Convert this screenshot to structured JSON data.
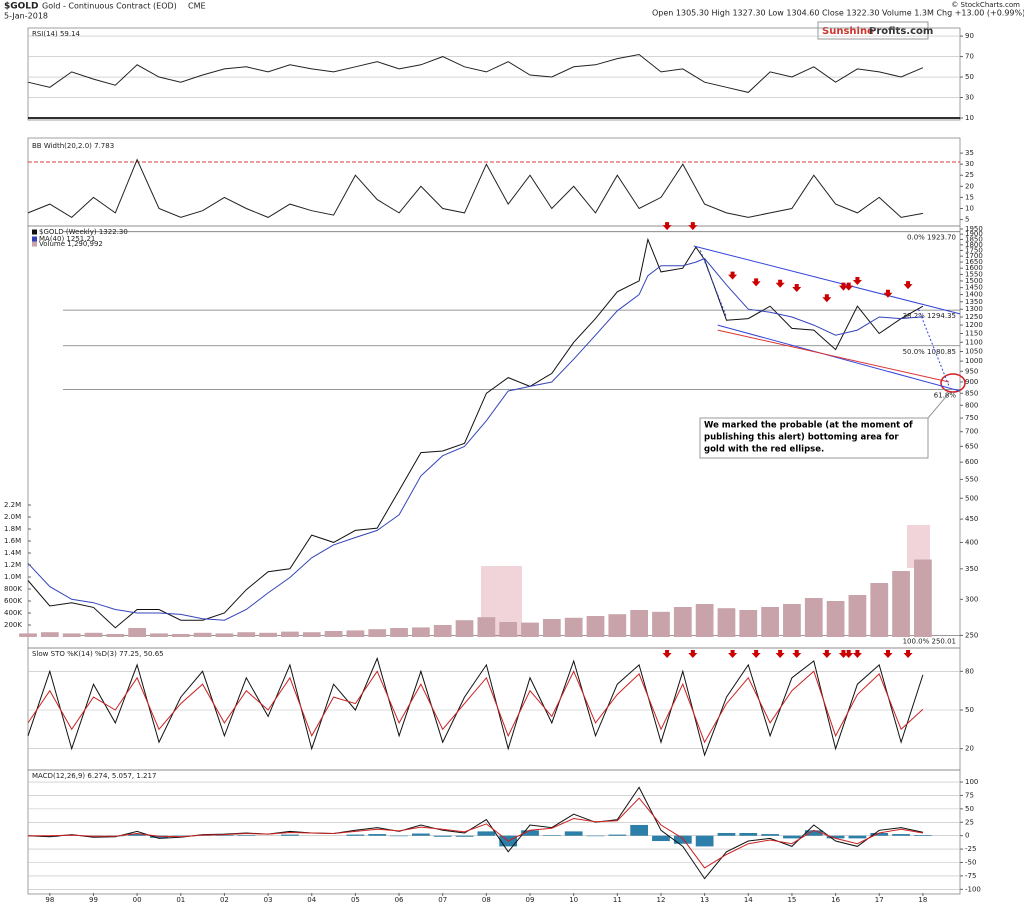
{
  "header": {
    "symbol": "$GOLD",
    "name": "Gold - Continuous Contract (EOD)",
    "exchange": "CME",
    "date": "5-Jan-2018",
    "quote": "Open 1305.30 High 1327.30 Low 1304.60 Close 1322.30 Volume 1.3M Chg +13.00 (+0.99%)",
    "source": "© StockCharts.com"
  },
  "logo": {
    "left": "Sunshine",
    "right": "Profits.com"
  },
  "chart_data": [
    {
      "type": "line",
      "title": "RSI(14) 59.14",
      "xlim": [
        1997.5,
        2018.85
      ],
      "ylim": [
        10,
        94
      ],
      "yticks": [
        10,
        30,
        50,
        70,
        90
      ],
      "grid": true,
      "x": [
        1997.5,
        1998,
        1998.5,
        1999,
        1999.5,
        2000,
        2000.5,
        2001,
        2001.5,
        2002,
        2002.5,
        2003,
        2003.5,
        2004,
        2004.5,
        2005,
        2005.5,
        2006,
        2006.5,
        2007,
        2007.5,
        2008,
        2008.5,
        2009,
        2009.5,
        2010,
        2010.5,
        2011,
        2011.5,
        2012,
        2012.5,
        2013,
        2013.5,
        2014,
        2014.5,
        2015,
        2015.5,
        2016,
        2016.5,
        2017,
        2017.5,
        2018
      ],
      "series": [
        {
          "color": "#222222",
          "values": [
            45,
            40,
            55,
            48,
            42,
            62,
            50,
            45,
            52,
            58,
            60,
            55,
            62,
            58,
            55,
            60,
            65,
            58,
            62,
            70,
            60,
            55,
            65,
            52,
            50,
            60,
            62,
            68,
            72,
            55,
            58,
            45,
            40,
            35,
            55,
            50,
            60,
            45,
            58,
            55,
            50,
            59.14
          ]
        }
      ]
    },
    {
      "type": "line",
      "title": "BB Width(20,2.0) 7.783",
      "xlim": [
        1997.5,
        2018.85
      ],
      "ylim": [
        3,
        40
      ],
      "yticks": [
        5,
        10,
        15,
        20,
        25,
        30,
        35
      ],
      "threshold": 31,
      "x": [
        1997.5,
        1998,
        1998.5,
        1999,
        1999.5,
        2000,
        2000.5,
        2001,
        2001.5,
        2002,
        2002.5,
        2003,
        2003.5,
        2004,
        2004.5,
        2005,
        2005.5,
        2006,
        2006.5,
        2007,
        2007.5,
        2008,
        2008.5,
        2009,
        2009.5,
        2010,
        2010.5,
        2011,
        2011.5,
        2012,
        2012.5,
        2013,
        2013.5,
        2014,
        2014.5,
        2015,
        2015.5,
        2016,
        2016.5,
        2017,
        2017.5,
        2018
      ],
      "series": [
        {
          "color": "#222222",
          "values": [
            8,
            12,
            6,
            15,
            8,
            32,
            10,
            6,
            9,
            15,
            10,
            6,
            12,
            9,
            7,
            25,
            14,
            8,
            20,
            10,
            8,
            30,
            12,
            25,
            10,
            20,
            8,
            25,
            10,
            15,
            30,
            12,
            8,
            6,
            8,
            10,
            25,
            12,
            8,
            15,
            6,
            7.783
          ]
        }
      ]
    },
    {
      "type": "line",
      "log_scale": true,
      "xlim": [
        1997.5,
        2018.85
      ],
      "ylim": [
        248,
        1960
      ],
      "yticks": [
        250,
        300,
        350,
        400,
        450,
        500,
        550,
        600,
        650,
        700,
        750,
        800,
        850,
        900,
        950,
        1000,
        1050,
        1100,
        1150,
        1200,
        1250,
        1300,
        1350,
        1400,
        1450,
        1500,
        1550,
        1600,
        1650,
        1700,
        1750,
        1800,
        1850,
        1900,
        1950
      ],
      "x": [
        1997.5,
        1998,
        1998.5,
        1999,
        1999.5,
        2000,
        2000.5,
        2001,
        2001.5,
        2002,
        2002.5,
        2003,
        2003.5,
        2004,
        2004.5,
        2005,
        2005.5,
        2006,
        2006.5,
        2007,
        2007.5,
        2008,
        2008.5,
        2009,
        2009.5,
        2010,
        2010.5,
        2011,
        2011.5,
        2011.7,
        2012,
        2012.5,
        2012.8,
        2013,
        2013.5,
        2014,
        2014.5,
        2015,
        2015.5,
        2016,
        2016.5,
        2017,
        2017.5,
        2018
      ],
      "series": [
        {
          "name": "$GOLD (Weekly) 1322.30",
          "color": "#111111",
          "values": [
            330,
            290,
            295,
            288,
            260,
            285,
            285,
            270,
            270,
            280,
            315,
            345,
            350,
            415,
            400,
            425,
            430,
            520,
            630,
            635,
            660,
            850,
            920,
            880,
            940,
            1100,
            1240,
            1420,
            1500,
            1850,
            1570,
            1600,
            1780,
            1670,
            1230,
            1240,
            1320,
            1180,
            1170,
            1060,
            1320,
            1150,
            1240,
            1320
          ]
        },
        {
          "name": "MA(40) 1251.21",
          "color": "#3344bb",
          "values": [
            360,
            320,
            300,
            295,
            285,
            280,
            280,
            278,
            272,
            270,
            285,
            310,
            335,
            370,
            395,
            410,
            425,
            460,
            560,
            620,
            650,
            740,
            860,
            880,
            900,
            1010,
            1140,
            1290,
            1400,
            1540,
            1620,
            1620,
            1650,
            1680,
            1470,
            1300,
            1280,
            1250,
            1200,
            1140,
            1170,
            1250,
            1240,
            1251.21
          ]
        }
      ],
      "levels": [
        {
          "value": 1923.7,
          "label": "0.0% 1923.70"
        },
        {
          "value": 1294.35,
          "label": "38.2% 1294.35"
        },
        {
          "value": 1080.85,
          "label": "50.0% 1080.85"
        },
        {
          "value": 867,
          "label": "61.8%"
        },
        {
          "value": 250.01,
          "label": "100.0% 250.01"
        }
      ],
      "markers": {
        "x": [
          2012.14,
          2012.73,
          2013.64,
          2014.18,
          2014.73,
          2015.11,
          2015.8,
          2016.18,
          2016.3,
          2016.5,
          2017.2,
          2017.66
        ],
        "y": [
          1900,
          1900,
          1480,
          1430,
          1420,
          1390,
          1320,
          1400,
          1400,
          1440,
          1350,
          1410
        ],
        "color": "#cc0000"
      },
      "lines": [
        {
          "x": [
            2012.75,
            2018.85
          ],
          "y": [
            1790,
            1270
          ],
          "color": "#3344dd",
          "dotted": false
        },
        {
          "x": [
            2013.3,
            2018.85
          ],
          "y": [
            1200,
            860
          ],
          "color": "#3344dd",
          "dotted": false
        },
        {
          "x": [
            2013.3,
            2018.6
          ],
          "y": [
            1170,
            900
          ],
          "color": "#dd3333",
          "dotted": false
        },
        {
          "x": [
            2012.9,
            2013.5
          ],
          "y": [
            1750,
            1250
          ],
          "color": "#3344dd",
          "dotted": true
        },
        {
          "x": [
            2017.9,
            2018.6
          ],
          "y": [
            1300,
            880
          ],
          "color": "#3344dd",
          "dotted": true
        }
      ],
      "note": [
        "We marked the probable (at the moment of",
        "publishing this alert) bottoming area for",
        "gold with the red ellipse."
      ]
    },
    {
      "type": "bar",
      "xlim": [
        1997.5,
        2018.85
      ],
      "ylim": [
        0,
        2200000
      ],
      "axis_side": "left",
      "yticks": [
        {
          "value": 200000,
          "label": "200K"
        },
        {
          "value": 400000,
          "label": "400K"
        },
        {
          "value": 600000,
          "label": "600K"
        },
        {
          "value": 800000,
          "label": "800K"
        },
        {
          "value": 1000000,
          "label": "1.0M"
        },
        {
          "value": 1200000,
          "label": "1.2M"
        },
        {
          "value": 1400000,
          "label": "1.4M"
        },
        {
          "value": 1600000,
          "label": "1.6M"
        },
        {
          "value": 1800000,
          "label": "1.8M"
        },
        {
          "value": 2000000,
          "label": "2.0M"
        },
        {
          "value": 2200000,
          "label": "2.2M"
        }
      ],
      "x": [
        1997.5,
        1998,
        1998.5,
        1999,
        1999.5,
        2000,
        2000.5,
        2001,
        2001.5,
        2002,
        2002.5,
        2003,
        2003.5,
        2004,
        2004.5,
        2005,
        2005.5,
        2006,
        2006.5,
        2007,
        2007.5,
        2008,
        2008.5,
        2009,
        2009.5,
        2010,
        2010.5,
        2011,
        2011.5,
        2012,
        2012.5,
        2013,
        2013.5,
        2014,
        2014.5,
        2015,
        2015.5,
        2016,
        2016.5,
        2017,
        2017.5,
        2018
      ],
      "series": [
        {
          "name": "Volume 1,290,992",
          "color": "#c9a3aa",
          "values": [
            60000,
            80000,
            60000,
            70000,
            50000,
            150000,
            60000,
            50000,
            70000,
            60000,
            80000,
            70000,
            90000,
            80000,
            100000,
            110000,
            130000,
            150000,
            160000,
            200000,
            280000,
            330000,
            250000,
            240000,
            300000,
            320000,
            350000,
            380000,
            450000,
            420000,
            500000,
            550000,
            480000,
            450000,
            500000,
            550000,
            650000,
            600000,
            700000,
            900000,
            1100000,
            1290992
          ]
        }
      ]
    },
    {
      "type": "line",
      "title": "Slow STO %K(14) %D(3) 77.25, 50.65",
      "xlim": [
        1997.5,
        2018.85
      ],
      "ylim": [
        5,
        95
      ],
      "yticks": [
        20,
        50,
        80
      ],
      "grid": true,
      "x": [
        1997.5,
        1998,
        1998.5,
        1999,
        1999.5,
        2000,
        2000.5,
        2001,
        2001.5,
        2002,
        2002.5,
        2003,
        2003.5,
        2004,
        2004.5,
        2005,
        2005.5,
        2006,
        2006.5,
        2007,
        2007.5,
        2008,
        2008.5,
        2009,
        2009.5,
        2010,
        2010.5,
        2011,
        2011.5,
        2012,
        2012.5,
        2013,
        2013.5,
        2014,
        2014.5,
        2015,
        2015.5,
        2016,
        2016.5,
        2017,
        2017.5,
        2018
      ],
      "series": [
        {
          "color": "#111111",
          "values": [
            30,
            80,
            20,
            70,
            40,
            85,
            25,
            60,
            80,
            30,
            75,
            45,
            85,
            20,
            70,
            50,
            90,
            30,
            80,
            25,
            60,
            85,
            20,
            75,
            40,
            88,
            30,
            70,
            85,
            25,
            80,
            15,
            60,
            85,
            30,
            75,
            88,
            20,
            70,
            85,
            25,
            77.25
          ]
        },
        {
          "color": "#cc2222",
          "values": [
            40,
            65,
            35,
            60,
            50,
            75,
            35,
            55,
            70,
            40,
            65,
            50,
            75,
            30,
            60,
            55,
            80,
            40,
            70,
            35,
            55,
            75,
            30,
            65,
            45,
            80,
            40,
            62,
            78,
            35,
            70,
            25,
            55,
            75,
            40,
            65,
            80,
            30,
            62,
            78,
            35,
            50.65
          ]
        }
      ],
      "markers": {
        "x": [
          2012.14,
          2012.73,
          2013.64,
          2014.18,
          2014.73,
          2015.11,
          2015.8,
          2016.18,
          2016.3,
          2016.5,
          2017.2,
          2017.66
        ],
        "color": "#cc0000"
      }
    },
    {
      "type": "line",
      "title": "MACD(12,26,9) 6.274, 5.057, 1.217",
      "xlim": [
        1997.5,
        2018.85
      ],
      "ylim": [
        -105,
        115
      ],
      "yticks": [
        -100,
        -75,
        -50,
        -25,
        0,
        25,
        50,
        75,
        100
      ],
      "grid": true,
      "xticks": [
        {
          "value": 1998,
          "label": "98"
        },
        {
          "value": 1999,
          "label": "99"
        },
        {
          "value": 2000,
          "label": "00"
        },
        {
          "value": 2001,
          "label": "01"
        },
        {
          "value": 2002,
          "label": "02"
        },
        {
          "value": 2003,
          "label": "03"
        },
        {
          "value": 2004,
          "label": "04"
        },
        {
          "value": 2005,
          "label": "05"
        },
        {
          "value": 2006,
          "label": "06"
        },
        {
          "value": 2007,
          "label": "07"
        },
        {
          "value": 2008,
          "label": "08"
        },
        {
          "value": 2009,
          "label": "09"
        },
        {
          "value": 2010,
          "label": "10"
        },
        {
          "value": 2011,
          "label": "11"
        },
        {
          "value": 2012,
          "label": "12"
        },
        {
          "value": 2013,
          "label": "13"
        },
        {
          "value": 2014,
          "label": "14"
        },
        {
          "value": 2015,
          "label": "15"
        },
        {
          "value": 2016,
          "label": "16"
        },
        {
          "value": 2017,
          "label": "17"
        },
        {
          "value": 2018,
          "label": "18"
        }
      ],
      "x": [
        1997.5,
        1998,
        1998.5,
        1999,
        1999.5,
        2000,
        2000.5,
        2001,
        2001.5,
        2002,
        2002.5,
        2003,
        2003.5,
        2004,
        2004.5,
        2005,
        2005.5,
        2006,
        2006.5,
        2007,
        2007.5,
        2008,
        2008.5,
        2009,
        2009.5,
        2010,
        2010.5,
        2011,
        2011.5,
        2012,
        2012.5,
        2013,
        2013.5,
        2014,
        2014.5,
        2015,
        2015.5,
        2016,
        2016.5,
        2017,
        2017.5,
        2018
      ],
      "series": [
        {
          "color": "#2b7fa8",
          "style": "bar",
          "values": [
            0,
            -2,
            1,
            -2,
            -1,
            4,
            -4,
            -1,
            1,
            1,
            1,
            0,
            2,
            0,
            0,
            2,
            3,
            -1,
            4,
            -2,
            -2,
            8,
            -20,
            10,
            1,
            8,
            -1,
            2,
            20,
            -10,
            -15,
            -20,
            5,
            5,
            3,
            -5,
            10,
            -5,
            -5,
            5,
            3,
            1.217
          ]
        },
        {
          "color": "#111111",
          "values": [
            0,
            -2,
            2,
            -3,
            -2,
            8,
            -5,
            -3,
            2,
            3,
            5,
            3,
            8,
            5,
            4,
            10,
            15,
            8,
            20,
            10,
            5,
            30,
            -30,
            20,
            15,
            40,
            25,
            30,
            90,
            10,
            -20,
            -80,
            -30,
            -10,
            -5,
            -20,
            20,
            -10,
            -20,
            10,
            15,
            6.274
          ]
        },
        {
          "color": "#cc2222",
          "values": [
            0,
            0,
            1,
            -1,
            -1,
            4,
            -1,
            -2,
            1,
            2,
            4,
            3,
            6,
            5,
            4,
            8,
            12,
            9,
            16,
            12,
            7,
            22,
            -10,
            10,
            14,
            32,
            26,
            28,
            70,
            20,
            -5,
            -60,
            -35,
            -15,
            -8,
            -15,
            10,
            -5,
            -15,
            5,
            12,
            5.057
          ]
        }
      ]
    }
  ]
}
